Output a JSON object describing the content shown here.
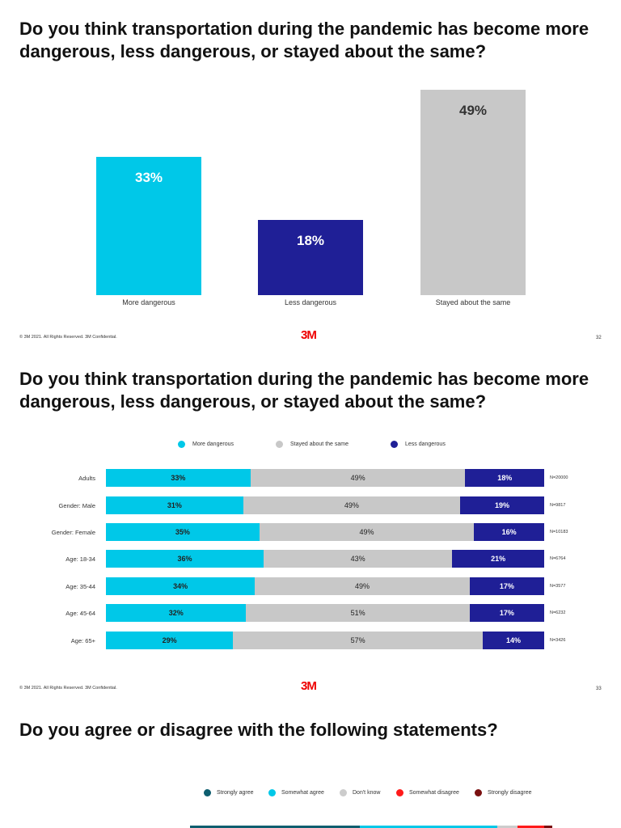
{
  "slide1": {
    "title": "Do you think transportation during the pandemic has become more dangerous, less dangerous, or stayed about the same?",
    "footer": "© 3M 2021. All Rights Reserved. 3M Confidential.",
    "logo": "3M",
    "page": "32"
  },
  "slide2": {
    "title": "Do you think transportation during the pandemic has become more dangerous, less dangerous, or stayed about the same?",
    "legend": [
      "More dangerous",
      "Stayed about the same",
      "Less dangerous"
    ],
    "footer": "© 3M 2021. All Rights Reserved. 3M Confidential.",
    "logo": "3M",
    "page": "33"
  },
  "slide3": {
    "title": "Do you agree or disagree with the following statements?",
    "legend": [
      {
        "label": "Strongly agree",
        "color": "#0e5e6f"
      },
      {
        "label": "Somewhat agree",
        "color": "#00c8e8"
      },
      {
        "label": "Don't know",
        "color": "#cccccc"
      },
      {
        "label": "Somewhat disagree",
        "color": "#ff1a1a"
      },
      {
        "label": "Strongly disagree",
        "color": "#7a1010"
      }
    ]
  },
  "chart_data": [
    {
      "type": "bar",
      "categories": [
        "More dangerous",
        "Less dangerous",
        "Stayed about the same"
      ],
      "values": [
        33,
        18,
        49
      ],
      "labels": [
        "33%",
        "18%",
        "49%"
      ],
      "colors": [
        "#00c8e8",
        "#1f1f96",
        "#c8c8c8"
      ],
      "ylim": [
        0,
        50
      ]
    },
    {
      "type": "bar",
      "stacked": true,
      "orientation": "horizontal",
      "categories": [
        "Adults",
        "Gender: Male",
        "Gender: Female",
        "Age: 18-34",
        "Age: 35-44",
        "Age: 45-64",
        "Age: 65+"
      ],
      "n_labels": [
        "N=20000",
        "N=9817",
        "N=10183",
        "N=6764",
        "N=3577",
        "N=6232",
        "N=3426"
      ],
      "series": [
        {
          "name": "More dangerous",
          "color": "#00c8e8",
          "values": [
            33,
            31,
            35,
            36,
            34,
            32,
            29
          ]
        },
        {
          "name": "Stayed about the same",
          "color": "#c8c8c8",
          "values": [
            49,
            49,
            49,
            43,
            49,
            51,
            57
          ]
        },
        {
          "name": "Less dangerous",
          "color": "#1f1f96",
          "values": [
            18,
            19,
            16,
            21,
            17,
            17,
            14
          ]
        }
      ],
      "xlim": [
        0,
        100
      ],
      "legend": "top"
    }
  ]
}
